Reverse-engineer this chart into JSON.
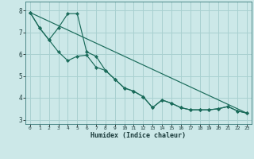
{
  "xlabel": "Humidex (Indice chaleur)",
  "background_color": "#cce8e8",
  "grid_color": "#a8d0d0",
  "line_color": "#1a6b5a",
  "xlim": [
    -0.5,
    23.5
  ],
  "ylim": [
    2.8,
    8.4
  ],
  "x_ticks": [
    0,
    1,
    2,
    3,
    4,
    5,
    6,
    7,
    8,
    9,
    10,
    11,
    12,
    13,
    14,
    15,
    16,
    17,
    18,
    19,
    20,
    21,
    22,
    23
  ],
  "y_ticks": [
    3,
    4,
    5,
    6,
    7,
    8
  ],
  "line1_x": [
    0,
    1,
    2,
    3,
    4,
    5,
    6,
    7,
    8,
    9,
    10,
    11,
    12,
    13,
    14,
    15,
    16,
    17,
    18,
    19,
    20,
    21,
    22,
    23
  ],
  "line1_y": [
    7.9,
    7.2,
    6.65,
    7.2,
    7.85,
    7.85,
    6.1,
    5.9,
    5.25,
    4.85,
    4.45,
    4.3,
    4.05,
    3.55,
    3.9,
    3.75,
    3.55,
    3.45,
    3.45,
    3.45,
    3.5,
    3.6,
    3.4,
    3.3
  ],
  "line2_x": [
    0,
    1,
    2,
    3,
    4,
    5,
    6,
    7,
    8,
    9,
    10,
    11,
    12,
    13,
    14,
    15,
    16,
    17,
    18,
    19,
    20,
    21,
    22,
    23
  ],
  "line2_y": [
    7.9,
    7.2,
    6.65,
    6.1,
    5.7,
    5.9,
    5.95,
    5.4,
    5.25,
    4.85,
    4.45,
    4.3,
    4.05,
    3.55,
    3.9,
    3.75,
    3.55,
    3.45,
    3.45,
    3.45,
    3.5,
    3.6,
    3.4,
    3.3
  ],
  "line3_x": [
    0,
    23
  ],
  "line3_y": [
    7.9,
    3.3
  ]
}
